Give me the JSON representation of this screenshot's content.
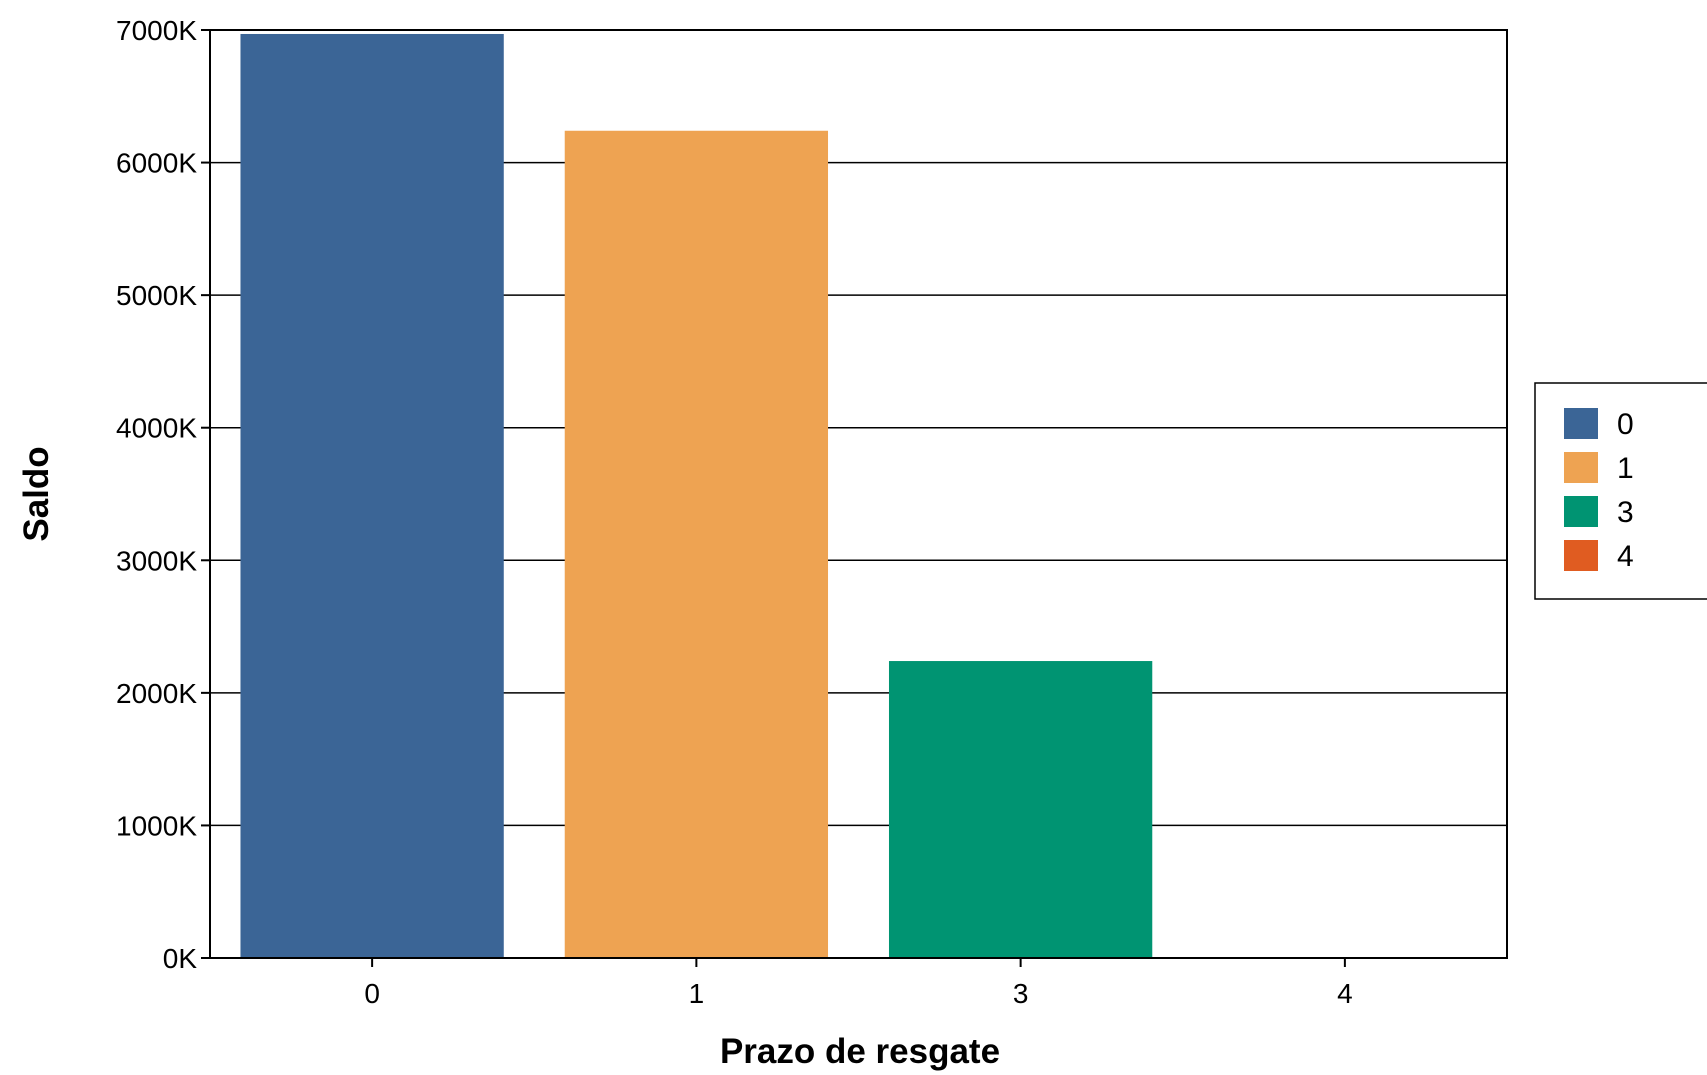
{
  "chart_data": {
    "type": "bar",
    "title": "",
    "xlabel": "Prazo de resgate",
    "ylabel": "Saldo",
    "categories": [
      "0",
      "1",
      "3",
      "4"
    ],
    "values": [
      6970000,
      6240000,
      2240000,
      0
    ],
    "colors": [
      "#3B6596",
      "#EEA352",
      "#009472",
      "#E05C21"
    ],
    "ylim": [
      0,
      7000000
    ],
    "yticks": [
      0,
      1000000,
      2000000,
      3000000,
      4000000,
      5000000,
      6000000,
      7000000
    ],
    "ytick_labels": [
      "0K",
      "1000K",
      "2000K",
      "3000K",
      "4000K",
      "5000K",
      "6000K",
      "7000K"
    ],
    "xtick_labels": [
      "0",
      "1",
      "3",
      "4"
    ],
    "grid": "horizontal",
    "legend": {
      "placement": "right",
      "entries": [
        "0",
        "1",
        "3",
        "4"
      ]
    }
  }
}
